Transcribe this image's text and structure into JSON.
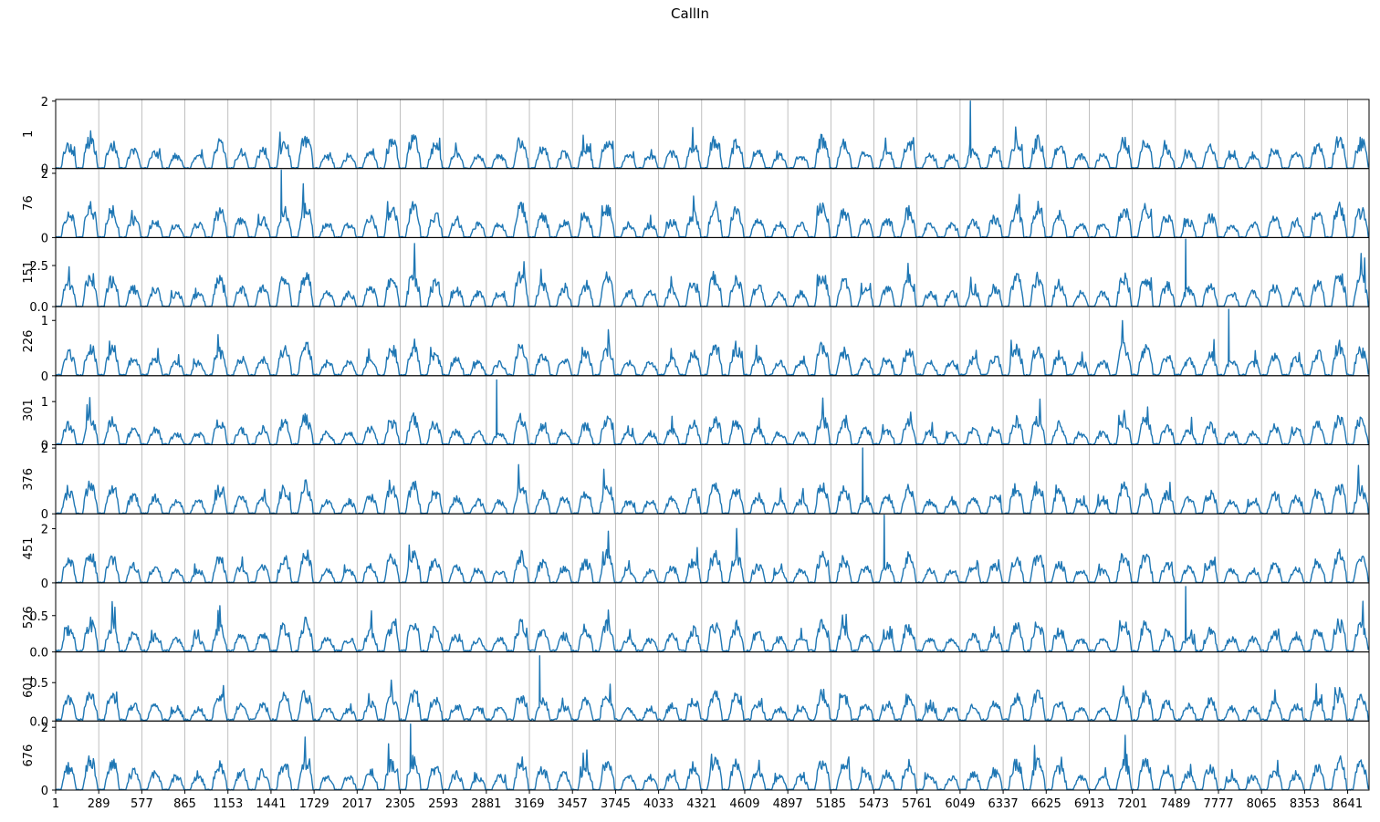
{
  "chart_data": {
    "type": "line",
    "title": "CallIn",
    "xlabel": "",
    "x_tick_labels": [
      "1",
      "289",
      "577",
      "865",
      "1153",
      "1441",
      "1729",
      "2017",
      "2305",
      "2593",
      "2881",
      "3169",
      "3457",
      "3745",
      "4033",
      "4321",
      "4609",
      "4897",
      "5185",
      "5473",
      "5761",
      "6049",
      "6337",
      "6625",
      "6913",
      "7201",
      "7489",
      "7777",
      "8065",
      "8353",
      "8641"
    ],
    "x_range": [
      1,
      8784
    ],
    "vertical_grid": true,
    "line_color": "#1f77b4",
    "series_note_points_per_series": "values sampled every 24 steps (index 1..8784), estimated",
    "panels": [
      {
        "ylabel": "1",
        "ylim": [
          0,
          2.05
        ],
        "yticks": [
          "0",
          "2"
        ],
        "ytick_values": [
          0,
          2
        ]
      },
      {
        "ylabel": "76",
        "ylim": [
          0,
          2.15
        ],
        "yticks": [
          "0",
          "2"
        ],
        "ytick_values": [
          0,
          2
        ]
      },
      {
        "ylabel": "151",
        "ylim": [
          0,
          4.2
        ],
        "yticks": [
          "0.0",
          "2.5"
        ],
        "ytick_values": [
          0,
          2.5
        ]
      },
      {
        "ylabel": "226",
        "ylim": [
          0,
          1.25
        ],
        "yticks": [
          "0",
          "1"
        ],
        "ytick_values": [
          0,
          1
        ]
      },
      {
        "ylabel": "301",
        "ylim": [
          0,
          1.6
        ],
        "yticks": [
          "0",
          "1"
        ],
        "ytick_values": [
          0,
          1
        ]
      },
      {
        "ylabel": "376",
        "ylim": [
          0,
          2.1
        ],
        "yticks": [
          "0",
          "2"
        ],
        "ytick_values": [
          0,
          2
        ]
      },
      {
        "ylabel": "451",
        "ylim": [
          0,
          2.55
        ],
        "yticks": [
          "0",
          "2"
        ],
        "ytick_values": [
          0,
          2
        ]
      },
      {
        "ylabel": "526",
        "ylim": [
          0,
          0.95
        ],
        "yticks": [
          "0.0",
          "0.5"
        ],
        "ytick_values": [
          0,
          0.5
        ]
      },
      {
        "ylabel": "601",
        "ylim": [
          0,
          0.9
        ],
        "yticks": [
          "0.0",
          "0.5"
        ],
        "ytick_values": [
          0,
          0.5
        ]
      },
      {
        "ylabel": "676",
        "ylim": [
          0,
          2.2
        ],
        "yticks": [
          "0",
          "2"
        ],
        "ytick_values": [
          0,
          2
        ]
      }
    ],
    "series": [
      {
        "name": "1",
        "peak_level": 1.0,
        "spike_max": 2.0
      },
      {
        "name": "76",
        "peak_level": 1.1,
        "spike_max": 2.1
      },
      {
        "name": "151",
        "peak_level": 2.2,
        "spike_max": 4.1
      },
      {
        "name": "226",
        "peak_level": 0.6,
        "spike_max": 1.2
      },
      {
        "name": "301",
        "peak_level": 0.7,
        "spike_max": 1.5
      },
      {
        "name": "376",
        "peak_level": 1.0,
        "spike_max": 2.0
      },
      {
        "name": "451",
        "peak_level": 1.2,
        "spike_max": 2.5
      },
      {
        "name": "526",
        "peak_level": 0.45,
        "spike_max": 0.9
      },
      {
        "name": "601",
        "peak_level": 0.4,
        "spike_max": 0.85
      },
      {
        "name": "676",
        "peak_level": 1.1,
        "spike_max": 2.1
      }
    ]
  }
}
